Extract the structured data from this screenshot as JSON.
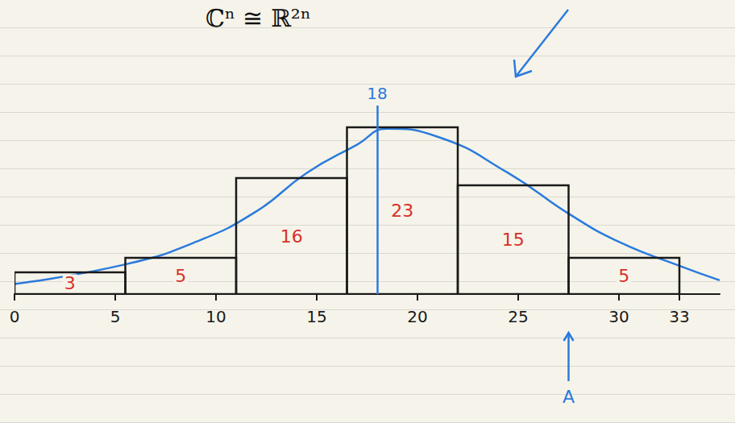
{
  "chart_data": {
    "type": "histogram",
    "title": "ℂⁿ ≅ ℝ²ⁿ",
    "bins": [
      0,
      5.5,
      11,
      16.5,
      22,
      27.5,
      33
    ],
    "values": [
      3,
      5,
      16,
      23,
      15,
      5
    ],
    "color": "#1a1a1a",
    "data_labels": true,
    "curve": {
      "type": "line",
      "color": "#2b7bdc",
      "x": [
        0,
        5.5,
        9,
        12,
        14.5,
        17,
        18.5,
        21,
        24.5,
        27.5,
        30,
        33,
        35
      ],
      "values": [
        1.4,
        4.1,
        7.2,
        11.4,
        16.7,
        20.6,
        22.8,
        21.7,
        16.7,
        11.1,
        7.2,
        3.9,
        1.9
      ]
    },
    "vline": 18,
    "annotations": [
      {
        "text": "A",
        "x": 27.5
      }
    ],
    "xlim": [
      0,
      35
    ],
    "xticks": [
      0,
      5,
      10,
      15,
      20,
      25,
      30,
      33
    ],
    "ylim": [
      0,
      26
    ],
    "tick_labels": "x",
    "grid": false
  }
}
